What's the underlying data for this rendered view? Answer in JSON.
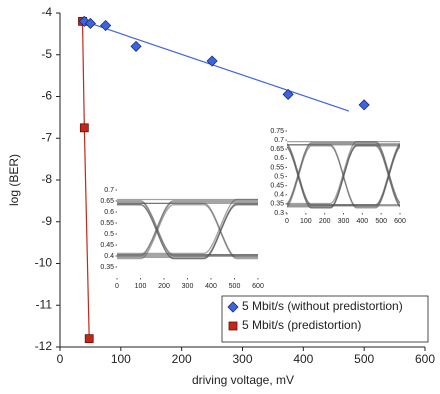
{
  "chart_data": {
    "type": "scatter",
    "xlabel": "driving voltage, mV",
    "ylabel": "log (BER)",
    "xlim": [
      0,
      600
    ],
    "ylim": [
      -12,
      -4
    ],
    "xticks": [
      0,
      100,
      200,
      300,
      400,
      500,
      600
    ],
    "yticks": [
      -4,
      -5,
      -6,
      -7,
      -8,
      -9,
      -10,
      -11,
      -12
    ],
    "legend": "lower right",
    "series": [
      {
        "name": "5 Mbit/s (without predistortion)",
        "color": "#3d63e0",
        "marker": "diamond",
        "x": [
          40,
          50,
          75,
          125,
          250,
          375,
          500
        ],
        "values": [
          -4.2,
          -4.25,
          -4.3,
          -4.8,
          -5.15,
          -5.95,
          -6.2
        ],
        "fit_x": [
          40,
          475
        ],
        "fit_values": [
          -4.2,
          -6.35
        ]
      },
      {
        "name": "5 Mbit/s (predistortion)",
        "color": "#c0281a",
        "marker": "square",
        "x": [
          37,
          40,
          48
        ],
        "values": [
          -4.2,
          -6.75,
          -11.8
        ]
      }
    ],
    "insets": [
      {
        "xlim": [
          0,
          600
        ],
        "ylim": [
          0.3,
          0.7
        ],
        "xticks": [
          0,
          100,
          200,
          300,
          400,
          500,
          600
        ],
        "yticks": [
          0.35,
          0.4,
          0.45,
          0.5,
          0.55,
          0.6,
          0.65,
          0.7
        ]
      },
      {
        "xlim": [
          0,
          600
        ],
        "ylim": [
          0.3,
          0.75
        ],
        "xticks": [
          0,
          100,
          200,
          300,
          400,
          500,
          600
        ],
        "yticks": [
          0.3,
          0.35,
          0.4,
          0.45,
          0.5,
          0.55,
          0.6,
          0.65,
          0.7,
          0.75
        ]
      }
    ]
  }
}
